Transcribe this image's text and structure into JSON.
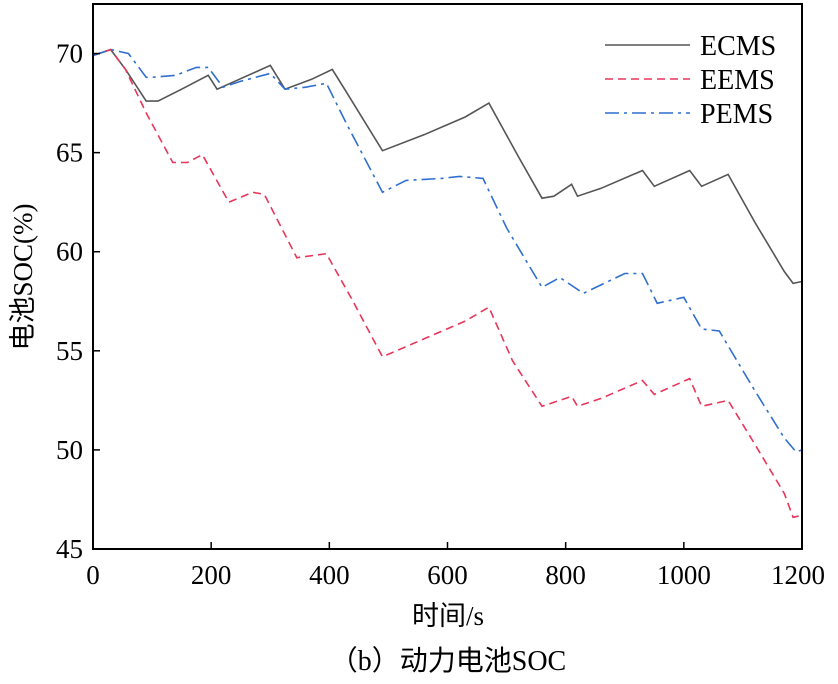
{
  "caption": "（b）动力电池SOC",
  "chart_data": {
    "type": "line",
    "xlabel": "时间/s",
    "ylabel": "电池SOC(%)",
    "xlim": [
      0,
      1200
    ],
    "ylim": [
      45,
      72.5
    ],
    "xticks": [
      0,
      200,
      400,
      600,
      800,
      1000,
      1200
    ],
    "yticks": [
      45,
      50,
      55,
      60,
      65,
      70
    ],
    "grid": false,
    "legend": "top-right",
    "series": [
      {
        "name": "ECMS",
        "color": "#555555",
        "dash": "solid",
        "x": [
          0,
          30,
          55,
          90,
          110,
          150,
          195,
          210,
          240,
          300,
          325,
          370,
          405,
          430,
          490,
          560,
          630,
          670,
          720,
          760,
          780,
          810,
          820,
          860,
          930,
          950,
          1010,
          1030,
          1075,
          1120,
          1170,
          1185,
          1200
        ],
        "y": [
          69.9,
          70.2,
          69.2,
          67.6,
          67.6,
          68.2,
          68.9,
          68.2,
          68.6,
          69.4,
          68.2,
          68.7,
          69.2,
          68.0,
          65.1,
          65.9,
          66.8,
          67.5,
          64.8,
          62.7,
          62.8,
          63.4,
          62.8,
          63.2,
          64.1,
          63.3,
          64.1,
          63.3,
          63.9,
          61.5,
          59.0,
          58.4,
          58.5
        ]
      },
      {
        "name": "EEMS",
        "color": "#e8365a",
        "dash": "8,5",
        "x": [
          0,
          30,
          55,
          90,
          135,
          160,
          185,
          230,
          270,
          290,
          345,
          395,
          440,
          490,
          560,
          630,
          670,
          710,
          760,
          810,
          820,
          860,
          930,
          950,
          1010,
          1030,
          1075,
          1120,
          1170,
          1185,
          1200
        ],
        "y": [
          69.9,
          70.2,
          69.2,
          67.0,
          64.5,
          64.5,
          64.9,
          62.5,
          63.0,
          62.9,
          59.7,
          59.9,
          57.5,
          54.7,
          55.6,
          56.5,
          57.2,
          54.5,
          52.2,
          52.7,
          52.2,
          52.6,
          53.5,
          52.8,
          53.6,
          52.2,
          52.5,
          50.3,
          47.8,
          46.6,
          46.7
        ]
      },
      {
        "name": "PEMS",
        "color": "#2f6fd0",
        "dash": "14,5,3,5",
        "x": [
          0,
          30,
          60,
          90,
          100,
          140,
          175,
          195,
          220,
          250,
          300,
          325,
          360,
          395,
          430,
          490,
          530,
          590,
          620,
          660,
          700,
          760,
          790,
          830,
          900,
          930,
          955,
          1000,
          1030,
          1060,
          1120,
          1170,
          1190,
          1200
        ],
        "y": [
          69.9,
          70.2,
          70.0,
          68.8,
          68.8,
          68.9,
          69.3,
          69.3,
          68.3,
          68.6,
          69.0,
          68.2,
          68.3,
          68.5,
          66.4,
          63.0,
          63.6,
          63.7,
          63.8,
          63.7,
          61.2,
          58.2,
          58.7,
          57.9,
          58.9,
          58.9,
          57.4,
          57.7,
          56.1,
          56.0,
          53.0,
          50.6,
          49.9,
          50.0
        ]
      }
    ]
  }
}
